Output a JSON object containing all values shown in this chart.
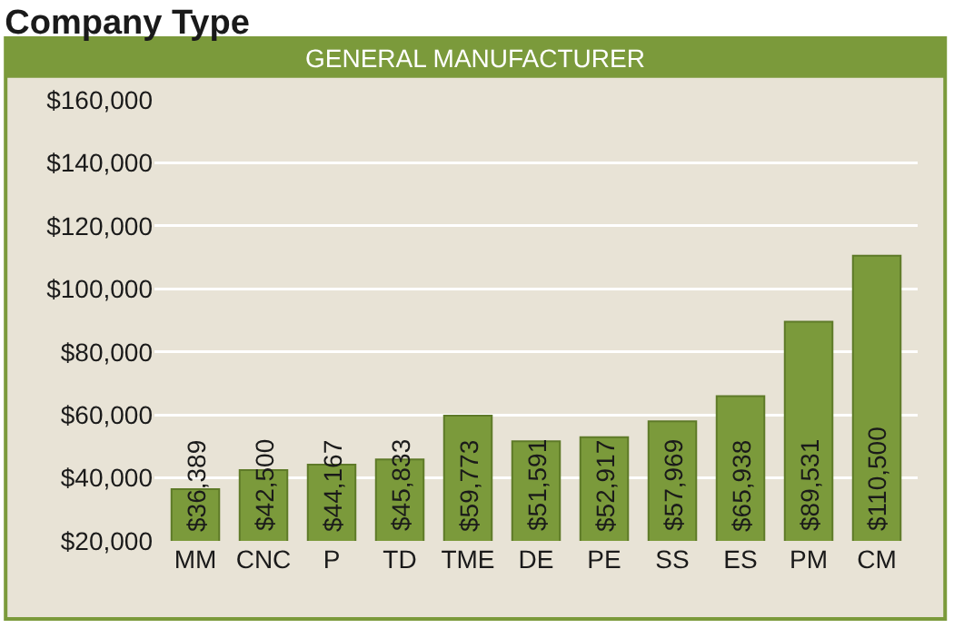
{
  "chart_data": {
    "type": "bar",
    "title": "Company Type",
    "subtitle": "GENERAL MANUFACTURER",
    "categories": [
      "MM",
      "CNC",
      "P",
      "TD",
      "TME",
      "DE",
      "PE",
      "SS",
      "ES",
      "PM",
      "CM"
    ],
    "values": [
      36389,
      42500,
      44167,
      45833,
      59773,
      51591,
      52917,
      57969,
      65938,
      89531,
      110500
    ],
    "color": "#7b9a3b",
    "data_labels": true,
    "value_labels": [
      "$36,389",
      "$42,500",
      "$44,167",
      "$45,833",
      "$59,773",
      "$51,591",
      "$52,917",
      "$57,969",
      "$65,938",
      "$89,531",
      "$110,500"
    ],
    "ylim": [
      20000,
      160000
    ],
    "yticks": [
      {
        "value": 20000,
        "label": "$20,000"
      },
      {
        "value": 40000,
        "label": "$40,000"
      },
      {
        "value": 60000,
        "label": "$60,000"
      },
      {
        "value": 80000,
        "label": "$80,000"
      },
      {
        "value": 100000,
        "label": "$100,000"
      },
      {
        "value": 120000,
        "label": "$120,000"
      },
      {
        "value": 140000,
        "label": "$140,000"
      },
      {
        "value": 160000,
        "label": "$160,000"
      }
    ],
    "grid": "y"
  }
}
